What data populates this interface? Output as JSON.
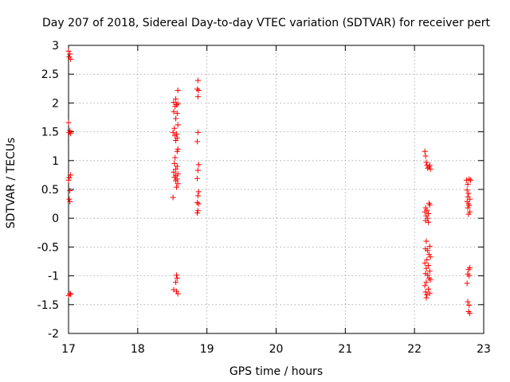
{
  "chart_data": {
    "type": "scatter",
    "title": "Day 207 of 2018, Sidereal Day-to-day VTEC variation (SDTVAR) for receiver pert",
    "xlabel": "GPS time / hours",
    "ylabel": "SDTVAR / TECUs",
    "xlim": [
      17,
      23
    ],
    "ylim": [
      -2,
      3
    ],
    "xticks": [
      "17",
      "18",
      "19",
      "20",
      "21",
      "22",
      "23"
    ],
    "yticks": [
      "-2",
      "-1.5",
      "-1",
      "-0.5",
      "0",
      "0.5",
      "1",
      "1.5",
      "2",
      "2.5",
      "3"
    ],
    "grid": true,
    "marker": "+",
    "series_color": "#ff0000",
    "series": [
      {
        "name": "SDTVAR",
        "points": [
          [
            17.0,
            2.9
          ],
          [
            17.02,
            2.85
          ],
          [
            17.01,
            2.8
          ],
          [
            17.03,
            2.76
          ],
          [
            17.0,
            1.66
          ],
          [
            17.02,
            1.52
          ],
          [
            17.01,
            1.49
          ],
          [
            17.03,
            1.47
          ],
          [
            17.03,
            0.75
          ],
          [
            17.01,
            0.7
          ],
          [
            17.0,
            0.66
          ],
          [
            17.02,
            0.48
          ],
          [
            17.01,
            0.33
          ],
          [
            17.02,
            0.29
          ],
          [
            17.02,
            -1.31
          ],
          [
            17.0,
            -1.34
          ],
          [
            17.03,
            -1.32
          ],
          [
            18.58,
            2.22
          ],
          [
            18.55,
            2.07
          ],
          [
            18.52,
            2.01
          ],
          [
            18.58,
            1.99
          ],
          [
            18.56,
            1.97
          ],
          [
            18.54,
            1.94
          ],
          [
            18.52,
            1.85
          ],
          [
            18.57,
            1.82
          ],
          [
            18.55,
            1.73
          ],
          [
            18.58,
            1.62
          ],
          [
            18.53,
            1.56
          ],
          [
            18.51,
            1.49
          ],
          [
            18.56,
            1.46
          ],
          [
            18.54,
            1.43
          ],
          [
            18.57,
            1.39
          ],
          [
            18.55,
            1.35
          ],
          [
            18.58,
            1.2
          ],
          [
            18.57,
            1.16
          ],
          [
            18.54,
            1.05
          ],
          [
            18.53,
            0.95
          ],
          [
            18.57,
            0.9
          ],
          [
            18.55,
            0.85
          ],
          [
            18.52,
            0.8
          ],
          [
            18.58,
            0.77
          ],
          [
            18.55,
            0.74
          ],
          [
            18.53,
            0.71
          ],
          [
            18.57,
            0.68
          ],
          [
            18.55,
            0.65
          ],
          [
            18.58,
            0.6
          ],
          [
            18.56,
            0.54
          ],
          [
            18.51,
            0.36
          ],
          [
            18.56,
            -0.99
          ],
          [
            18.57,
            -1.04
          ],
          [
            18.55,
            -1.11
          ],
          [
            18.52,
            -1.24
          ],
          [
            18.56,
            -1.27
          ],
          [
            18.58,
            -1.31
          ],
          [
            18.87,
            2.39
          ],
          [
            18.86,
            2.24
          ],
          [
            18.88,
            2.22
          ],
          [
            18.87,
            2.11
          ],
          [
            18.87,
            1.49
          ],
          [
            18.86,
            1.33
          ],
          [
            18.88,
            0.93
          ],
          [
            18.87,
            0.83
          ],
          [
            18.86,
            0.69
          ],
          [
            18.88,
            0.46
          ],
          [
            18.87,
            0.39
          ],
          [
            18.86,
            0.27
          ],
          [
            18.88,
            0.25
          ],
          [
            18.87,
            0.13
          ],
          [
            18.86,
            0.09
          ],
          [
            22.15,
            1.16
          ],
          [
            22.16,
            1.08
          ],
          [
            22.17,
            0.97
          ],
          [
            22.18,
            0.92
          ],
          [
            22.21,
            0.89
          ],
          [
            22.22,
            0.92
          ],
          [
            22.19,
            0.87
          ],
          [
            22.23,
            0.85
          ],
          [
            22.21,
            0.26
          ],
          [
            22.22,
            0.23
          ],
          [
            22.16,
            0.18
          ],
          [
            22.18,
            0.14
          ],
          [
            22.15,
            0.11
          ],
          [
            22.2,
            0.08
          ],
          [
            22.17,
            0.04
          ],
          [
            22.19,
            0.0
          ],
          [
            22.16,
            -0.04
          ],
          [
            22.2,
            -0.07
          ],
          [
            22.17,
            -0.4
          ],
          [
            22.22,
            -0.49
          ],
          [
            22.16,
            -0.53
          ],
          [
            22.19,
            -0.56
          ],
          [
            22.21,
            -0.63
          ],
          [
            22.23,
            -0.67
          ],
          [
            22.18,
            -0.72
          ],
          [
            22.15,
            -0.78
          ],
          [
            22.2,
            -0.82
          ],
          [
            22.17,
            -0.87
          ],
          [
            22.22,
            -0.92
          ],
          [
            22.16,
            -0.96
          ],
          [
            22.19,
            -0.99
          ],
          [
            22.21,
            -1.04
          ],
          [
            22.23,
            -1.07
          ],
          [
            22.17,
            -1.11
          ],
          [
            22.15,
            -1.17
          ],
          [
            22.2,
            -1.23
          ],
          [
            22.16,
            -1.28
          ],
          [
            22.22,
            -1.3
          ],
          [
            22.18,
            -1.33
          ],
          [
            22.17,
            -1.38
          ],
          [
            22.75,
            0.66
          ],
          [
            22.79,
            0.68
          ],
          [
            22.81,
            0.66
          ],
          [
            22.77,
            0.59
          ],
          [
            22.76,
            0.49
          ],
          [
            22.78,
            0.43
          ],
          [
            22.77,
            0.37
          ],
          [
            22.8,
            0.33
          ],
          [
            22.76,
            0.29
          ],
          [
            22.78,
            0.25
          ],
          [
            22.79,
            0.22
          ],
          [
            22.77,
            0.18
          ],
          [
            22.8,
            0.11
          ],
          [
            22.78,
            0.07
          ],
          [
            22.8,
            -0.86
          ],
          [
            22.78,
            -0.89
          ],
          [
            22.77,
            -0.97
          ],
          [
            22.79,
            -1.0
          ],
          [
            22.76,
            -1.13
          ],
          [
            22.77,
            -1.45
          ],
          [
            22.79,
            -1.51
          ],
          [
            22.78,
            -1.62
          ],
          [
            22.8,
            -1.65
          ]
        ]
      }
    ]
  }
}
